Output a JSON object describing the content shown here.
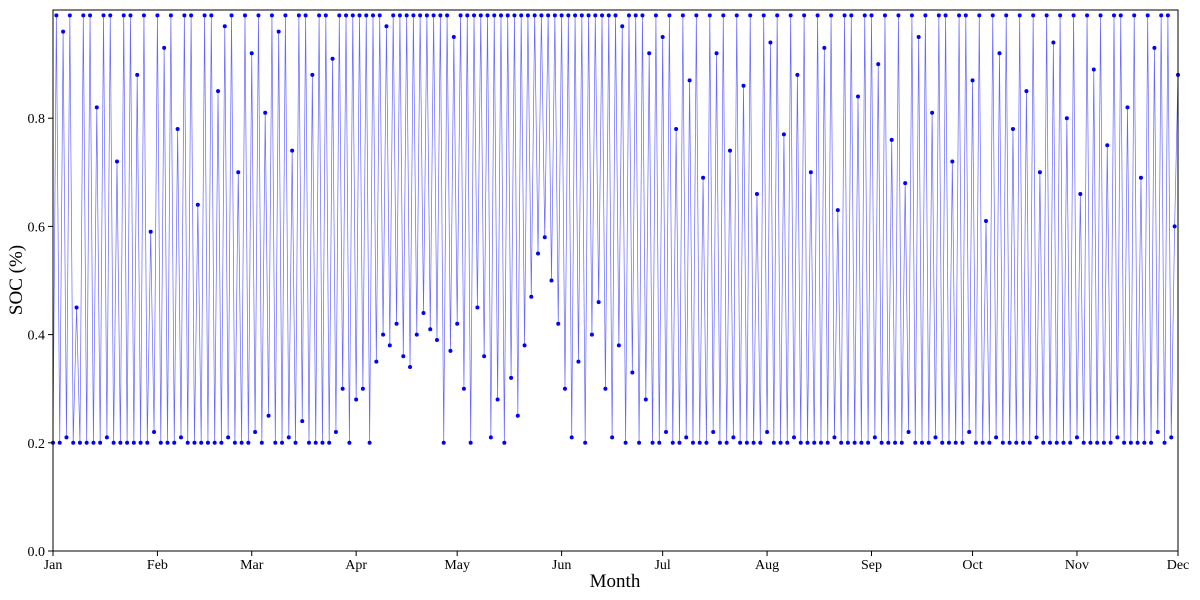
{
  "chart_data": {
    "type": "line",
    "x_label": "Month",
    "y_label": "SOC (%)",
    "xlim": [
      0,
      334
    ],
    "ylim": [
      0,
      1
    ],
    "xticks": [
      {
        "value": 0,
        "label": "Jan"
      },
      {
        "value": 31,
        "label": "Feb"
      },
      {
        "value": 59,
        "label": "Mar"
      },
      {
        "value": 90,
        "label": "Apr"
      },
      {
        "value": 120,
        "label": "May"
      },
      {
        "value": 151,
        "label": "Jun"
      },
      {
        "value": 181,
        "label": "Jul"
      },
      {
        "value": 212,
        "label": "Aug"
      },
      {
        "value": 243,
        "label": "Sep"
      },
      {
        "value": 273,
        "label": "Oct"
      },
      {
        "value": 304,
        "label": "Nov"
      },
      {
        "value": 334,
        "label": "Dec"
      }
    ],
    "yticks": [
      {
        "value": 0,
        "label": "0.0"
      },
      0.2,
      0.4,
      0.6,
      0.8
    ],
    "color": "#0000ff",
    "x": [
      0,
      1,
      2,
      3,
      4,
      5,
      6,
      7,
      8,
      9,
      10,
      11,
      12,
      13,
      14,
      15,
      16,
      17,
      18,
      19,
      20,
      21,
      22,
      23,
      24,
      25,
      26,
      27,
      28,
      29,
      30,
      31,
      32,
      33,
      34,
      35,
      36,
      37,
      38,
      39,
      40,
      41,
      42,
      43,
      44,
      45,
      46,
      47,
      48,
      49,
      50,
      51,
      52,
      53,
      54,
      55,
      56,
      57,
      58,
      59,
      60,
      61,
      62,
      63,
      64,
      65,
      66,
      67,
      68,
      69,
      70,
      71,
      72,
      73,
      74,
      75,
      76,
      77,
      78,
      79,
      80,
      81,
      82,
      83,
      84,
      85,
      86,
      87,
      88,
      89,
      90,
      91,
      92,
      93,
      94,
      95,
      96,
      97,
      98,
      99,
      100,
      101,
      102,
      103,
      104,
      105,
      106,
      107,
      108,
      109,
      110,
      111,
      112,
      113,
      114,
      115,
      116,
      117,
      118,
      119,
      120,
      121,
      122,
      123,
      124,
      125,
      126,
      127,
      128,
      129,
      130,
      131,
      132,
      133,
      134,
      135,
      136,
      137,
      138,
      139,
      140,
      141,
      142,
      143,
      144,
      145,
      146,
      147,
      148,
      149,
      150,
      151,
      152,
      153,
      154,
      155,
      156,
      157,
      158,
      159,
      160,
      161,
      162,
      163,
      164,
      165,
      166,
      167,
      168,
      169,
      170,
      171,
      172,
      173,
      174,
      175,
      176,
      177,
      178,
      179,
      180,
      181,
      182,
      183,
      184,
      185,
      186,
      187,
      188,
      189,
      190,
      191,
      192,
      193,
      194,
      195,
      196,
      197,
      198,
      199,
      200,
      201,
      202,
      203,
      204,
      205,
      206,
      207,
      208,
      209,
      210,
      211,
      212,
      213,
      214,
      215,
      216,
      217,
      218,
      219,
      220,
      221,
      222,
      223,
      224,
      225,
      226,
      227,
      228,
      229,
      230,
      231,
      232,
      233,
      234,
      235,
      236,
      237,
      238,
      239,
      240,
      241,
      242,
      243,
      244,
      245,
      246,
      247,
      248,
      249,
      250,
      251,
      252,
      253,
      254,
      255,
      256,
      257,
      258,
      259,
      260,
      261,
      262,
      263,
      264,
      265,
      266,
      267,
      268,
      269,
      270,
      271,
      272,
      273,
      274,
      275,
      276,
      277,
      278,
      279,
      280,
      281,
      282,
      283,
      284,
      285,
      286,
      287,
      288,
      289,
      290,
      291,
      292,
      293,
      294,
      295,
      296,
      297,
      298,
      299,
      300,
      301,
      302,
      303,
      304,
      305,
      306,
      307,
      308,
      309,
      310,
      311,
      312,
      313,
      314,
      315,
      316,
      317,
      318,
      319,
      320,
      321,
      322,
      323,
      324,
      325,
      326,
      327,
      328,
      329,
      330,
      331,
      332,
      333,
      334
    ],
    "values": [
      0.2,
      0.99,
      0.2,
      0.96,
      0.21,
      0.99,
      0.2,
      0.45,
      0.2,
      0.99,
      0.2,
      0.99,
      0.2,
      0.82,
      0.2,
      0.99,
      0.21,
      0.99,
      0.2,
      0.72,
      0.2,
      0.99,
      0.2,
      0.99,
      0.2,
      0.88,
      0.2,
      0.99,
      0.2,
      0.59,
      0.22,
      0.99,
      0.2,
      0.93,
      0.2,
      0.99,
      0.2,
      0.78,
      0.21,
      0.99,
      0.2,
      0.99,
      0.2,
      0.64,
      0.2,
      0.99,
      0.2,
      0.99,
      0.2,
      0.85,
      0.2,
      0.97,
      0.21,
      0.99,
      0.2,
      0.7,
      0.2,
      0.99,
      0.2,
      0.92,
      0.22,
      0.99,
      0.2,
      0.81,
      0.25,
      0.99,
      0.2,
      0.96,
      0.2,
      0.99,
      0.21,
      0.74,
      0.2,
      0.99,
      0.24,
      0.99,
      0.2,
      0.88,
      0.2,
      0.99,
      0.2,
      0.99,
      0.2,
      0.91,
      0.22,
      0.99,
      0.3,
      0.99,
      0.2,
      0.99,
      0.28,
      0.99,
      0.3,
      0.99,
      0.2,
      0.99,
      0.35,
      0.99,
      0.4,
      0.97,
      0.38,
      0.99,
      0.42,
      0.99,
      0.36,
      0.99,
      0.34,
      0.99,
      0.4,
      0.99,
      0.44,
      0.99,
      0.41,
      0.99,
      0.39,
      0.99,
      0.2,
      0.99,
      0.37,
      0.95,
      0.42,
      0.99,
      0.3,
      0.99,
      0.2,
      0.99,
      0.45,
      0.99,
      0.36,
      0.99,
      0.21,
      0.99,
      0.28,
      0.99,
      0.2,
      0.99,
      0.32,
      0.99,
      0.25,
      0.99,
      0.38,
      0.99,
      0.47,
      0.99,
      0.55,
      0.99,
      0.58,
      0.99,
      0.5,
      0.99,
      0.42,
      0.99,
      0.3,
      0.99,
      0.21,
      0.99,
      0.35,
      0.99,
      0.2,
      0.99,
      0.4,
      0.99,
      0.46,
      0.99,
      0.3,
      0.99,
      0.21,
      0.99,
      0.38,
      0.97,
      0.2,
      0.99,
      0.33,
      0.99,
      0.2,
      0.99,
      0.28,
      0.92,
      0.2,
      0.99,
      0.2,
      0.95,
      0.22,
      0.99,
      0.2,
      0.78,
      0.2,
      0.99,
      0.21,
      0.87,
      0.2,
      0.99,
      0.2,
      0.69,
      0.2,
      0.99,
      0.22,
      0.92,
      0.2,
      0.99,
      0.2,
      0.74,
      0.21,
      0.99,
      0.2,
      0.86,
      0.2,
      0.99,
      0.2,
      0.66,
      0.2,
      0.99,
      0.22,
      0.94,
      0.2,
      0.99,
      0.2,
      0.77,
      0.2,
      0.99,
      0.21,
      0.88,
      0.2,
      0.99,
      0.2,
      0.7,
      0.2,
      0.99,
      0.2,
      0.93,
      0.2,
      0.99,
      0.21,
      0.63,
      0.2,
      0.99,
      0.2,
      0.99,
      0.2,
      0.84,
      0.2,
      0.99,
      0.2,
      0.99,
      0.21,
      0.9,
      0.2,
      0.99,
      0.2,
      0.76,
      0.2,
      0.99,
      0.2,
      0.68,
      0.22,
      0.99,
      0.2,
      0.95,
      0.2,
      0.99,
      0.2,
      0.81,
      0.21,
      0.99,
      0.2,
      0.99,
      0.2,
      0.72,
      0.2,
      0.99,
      0.2,
      0.99,
      0.22,
      0.87,
      0.2,
      0.99,
      0.2,
      0.61,
      0.2,
      0.99,
      0.21,
      0.92,
      0.2,
      0.99,
      0.2,
      0.78,
      0.2,
      0.99,
      0.2,
      0.85,
      0.2,
      0.99,
      0.21,
      0.7,
      0.2,
      0.99,
      0.2,
      0.94,
      0.2,
      0.99,
      0.2,
      0.8,
      0.2,
      0.99,
      0.21,
      0.66,
      0.2,
      0.99,
      0.2,
      0.89,
      0.2,
      0.99,
      0.2,
      0.75,
      0.2,
      0.99,
      0.21,
      0.99,
      0.2,
      0.82,
      0.2,
      0.99,
      0.2,
      0.69,
      0.2,
      0.99,
      0.2,
      0.93,
      0.22,
      0.99,
      0.2,
      0.99,
      0.21,
      0.6,
      0.88
    ]
  }
}
